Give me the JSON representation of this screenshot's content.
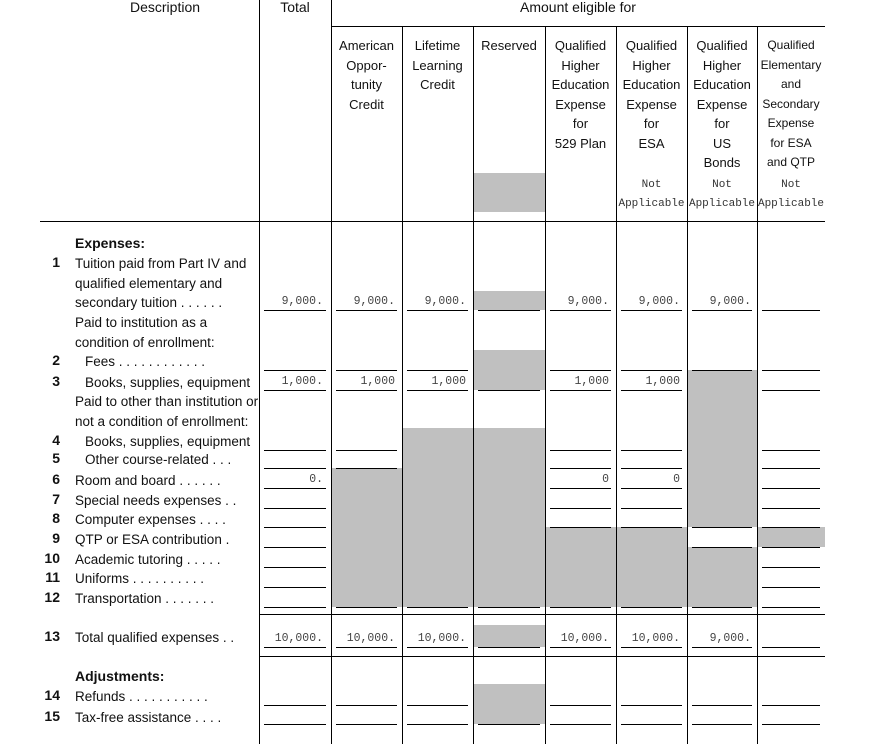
{
  "header": {
    "description": "Description",
    "total": "Total",
    "amount_eligible": "Amount eligible for"
  },
  "columns": [
    {
      "lines": [
        "American",
        "Oppor-",
        "tunity",
        "Credit"
      ],
      "note": []
    },
    {
      "lines": [
        "Lifetime",
        "Learning",
        "Credit"
      ],
      "note": []
    },
    {
      "lines": [
        "Reserved"
      ],
      "note": []
    },
    {
      "lines": [
        "Qualified",
        "Higher",
        "Education",
        "Expense",
        "for",
        "529 Plan"
      ],
      "note": []
    },
    {
      "lines": [
        "Qualified",
        "Higher",
        "Education",
        "Expense",
        "for",
        "ESA"
      ],
      "note": [
        "Not",
        "Applicable"
      ]
    },
    {
      "lines": [
        "Qualified",
        "Higher",
        "Education",
        "Expense",
        "for",
        "US",
        "Bonds"
      ],
      "note": [
        "Not",
        "Applicable"
      ]
    },
    {
      "lines": [
        "Qualified",
        "Elementary",
        "and",
        "Secondary",
        "Expense",
        "for ESA",
        "and QTP"
      ],
      "note": [
        "Not",
        "Applicable"
      ]
    }
  ],
  "sections": {
    "expenses": "Expenses:",
    "adjustments": "Adjustments:"
  },
  "subheads": {
    "paid_to_institution": [
      "Paid to institution as a",
      "condition of enrollment:"
    ],
    "paid_to_other": [
      "Paid to other than institution or",
      "not a condition of enrollment:"
    ]
  },
  "rows": [
    {
      "num": "1",
      "label": [
        "Tuition paid from Part IV and",
        "qualified elementary and",
        "secondary tuition . . . . . ."
      ],
      "values": [
        "9,000.",
        "9,000.",
        "9,000.",
        "",
        "9,000.",
        "9,000.",
        "9,000.",
        ""
      ]
    },
    {
      "num": "2",
      "label": [
        "Fees . . . . . . . . . . . ."
      ],
      "indent": true,
      "values": [
        "",
        "",
        "",
        "",
        "",
        "",
        "",
        ""
      ]
    },
    {
      "num": "3",
      "label": [
        "Books, supplies, equipment"
      ],
      "indent": true,
      "values": [
        "1,000.",
        "1,000",
        "1,000",
        "",
        "1,000",
        "1,000",
        "",
        ""
      ]
    },
    {
      "num": "4",
      "label": [
        "Books, supplies, equipment"
      ],
      "indent": true,
      "values": [
        "",
        "",
        "",
        "",
        "",
        "",
        "",
        ""
      ]
    },
    {
      "num": "5",
      "label": [
        "Other course-related . . ."
      ],
      "indent": true,
      "values": [
        "",
        "",
        "",
        "",
        "",
        "",
        "",
        ""
      ]
    },
    {
      "num": "6",
      "label": [
        "Room and board . . . . . ."
      ],
      "values": [
        "0.",
        "",
        "",
        "",
        "0",
        "0",
        "",
        ""
      ]
    },
    {
      "num": "7",
      "label": [
        "Special needs expenses . ."
      ],
      "values": [
        "",
        "",
        "",
        "",
        "",
        "",
        "",
        ""
      ]
    },
    {
      "num": "8",
      "label": [
        "Computer expenses . . . ."
      ],
      "values": [
        "",
        "",
        "",
        "",
        "",
        "",
        "",
        ""
      ]
    },
    {
      "num": "9",
      "label": [
        "QTP or ESA  contribution  ."
      ],
      "values": [
        "",
        "",
        "",
        "",
        "",
        "",
        "",
        ""
      ]
    },
    {
      "num": "10",
      "label": [
        "Academic tutoring . . . . ."
      ],
      "values": [
        "",
        "",
        "",
        "",
        "",
        "",
        "",
        ""
      ]
    },
    {
      "num": "11",
      "label": [
        "Uniforms . . . . . . . . . ."
      ],
      "values": [
        "",
        "",
        "",
        "",
        "",
        "",
        "",
        ""
      ]
    },
    {
      "num": "12",
      "label": [
        "Transportation . . . . . . ."
      ],
      "values": [
        "",
        "",
        "",
        "",
        "",
        "",
        "",
        ""
      ]
    },
    {
      "num": "13",
      "label": [
        "Total qualified expenses . ."
      ],
      "values": [
        "10,000.",
        "10,000.",
        "10,000.",
        "",
        "10,000.",
        "10,000.",
        "9,000.",
        ""
      ]
    },
    {
      "num": "14",
      "label": [
        "Refunds . . . . . . . . . . ."
      ],
      "values": [
        "",
        "",
        "",
        "",
        "",
        "",
        "",
        ""
      ]
    },
    {
      "num": "15",
      "label": [
        "Tax-free assistance  . . . ."
      ],
      "values": [
        "",
        "",
        "",
        "",
        "",
        "",
        "",
        ""
      ]
    }
  ],
  "colors": {
    "shade": "#c0c0c0",
    "rule": "#000000",
    "value_text": "#444444"
  }
}
